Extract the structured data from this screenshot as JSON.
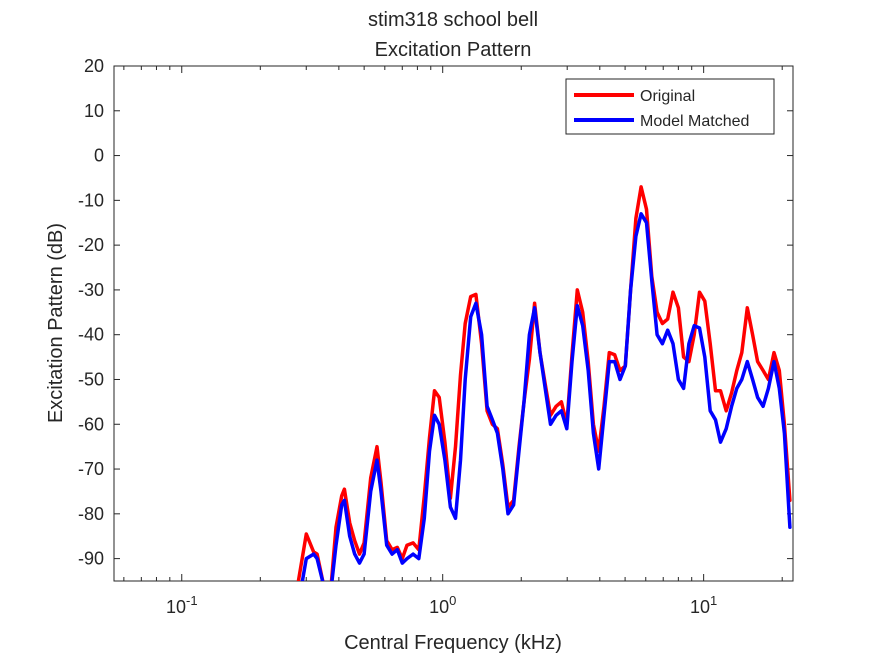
{
  "chart_data": {
    "type": "line",
    "title": "stim318 school bell",
    "subtitle": "Excitation Pattern",
    "xlabel": "Central Frequency (kHz)",
    "ylabel": "Excitation Pattern (dB)",
    "xscale": "log",
    "xlim": [
      0.055,
      22.0
    ],
    "ylim": [
      -95,
      20
    ],
    "yticks": [
      20,
      10,
      0,
      -10,
      -20,
      -30,
      -40,
      -50,
      -60,
      -70,
      -80,
      -90
    ],
    "xticks": [
      {
        "value": 0.1,
        "base": "10",
        "exp": "-1"
      },
      {
        "value": 1,
        "base": "10",
        "exp": "0"
      },
      {
        "value": 10,
        "base": "10",
        "exp": "1"
      }
    ],
    "grid": false,
    "legend_position": "top-right",
    "series": [
      {
        "name": "Original",
        "color": "#ff0000",
        "x": [
          0.28,
          0.3,
          0.32,
          0.33,
          0.35,
          0.37,
          0.39,
          0.41,
          0.42,
          0.44,
          0.46,
          0.48,
          0.5,
          0.53,
          0.56,
          0.58,
          0.61,
          0.64,
          0.67,
          0.7,
          0.73,
          0.77,
          0.81,
          0.85,
          0.89,
          0.93,
          0.97,
          1.02,
          1.07,
          1.12,
          1.17,
          1.22,
          1.28,
          1.34,
          1.41,
          1.48,
          1.55,
          1.62,
          1.7,
          1.78,
          1.87,
          1.96,
          2.05,
          2.15,
          2.25,
          2.36,
          2.47,
          2.59,
          2.72,
          2.85,
          2.99,
          3.13,
          3.28,
          3.44,
          3.61,
          3.78,
          3.96,
          4.15,
          4.35,
          4.56,
          4.78,
          5.01,
          5.25,
          5.5,
          5.76,
          6.04,
          6.33,
          6.63,
          6.95,
          7.28,
          7.63,
          8.0,
          8.38,
          8.78,
          9.2,
          9.64,
          10.1,
          10.6,
          11.1,
          11.6,
          12.2,
          12.8,
          13.4,
          14.0,
          14.7,
          15.4,
          16.1,
          16.9,
          17.7,
          18.6,
          19.5,
          20.4,
          21.4
        ],
        "y": [
          -95,
          -84.5,
          -88.5,
          -89,
          -96,
          -99,
          -83,
          -76,
          -74.5,
          -82,
          -86,
          -89,
          -86.5,
          -72,
          -65,
          -73,
          -86,
          -88,
          -87.5,
          -90,
          -87,
          -86.5,
          -88,
          -76,
          -63,
          -52.5,
          -54,
          -64,
          -76.5,
          -65,
          -49,
          -37.5,
          -31.5,
          -31,
          -42,
          -57,
          -60,
          -61,
          -69,
          -78.5,
          -77,
          -65,
          -55,
          -45.5,
          -33,
          -44,
          -51,
          -58,
          -56,
          -55,
          -60,
          -44.5,
          -30,
          -35,
          -46,
          -60,
          -66,
          -56,
          -44,
          -44.5,
          -48,
          -47,
          -30,
          -14,
          -7,
          -12,
          -27,
          -35,
          -37.5,
          -36.5,
          -30.5,
          -34,
          -45,
          -46,
          -40,
          -30.5,
          -32.5,
          -42,
          -52.5,
          -52.5,
          -57,
          -53,
          -48,
          -44,
          -34,
          -40,
          -46,
          -48,
          -50,
          -44,
          -48,
          -60,
          -77
        ]
      },
      {
        "name": "Model Matched",
        "color": "#0000ff",
        "x": [
          0.29,
          0.3,
          0.32,
          0.33,
          0.35,
          0.37,
          0.39,
          0.41,
          0.42,
          0.44,
          0.46,
          0.48,
          0.5,
          0.53,
          0.56,
          0.58,
          0.61,
          0.64,
          0.67,
          0.7,
          0.73,
          0.77,
          0.81,
          0.85,
          0.89,
          0.93,
          0.97,
          1.02,
          1.07,
          1.12,
          1.17,
          1.22,
          1.28,
          1.34,
          1.41,
          1.48,
          1.55,
          1.62,
          1.7,
          1.78,
          1.87,
          1.96,
          2.05,
          2.15,
          2.25,
          2.36,
          2.47,
          2.59,
          2.72,
          2.85,
          2.99,
          3.13,
          3.28,
          3.44,
          3.61,
          3.78,
          3.96,
          4.15,
          4.35,
          4.56,
          4.78,
          5.01,
          5.25,
          5.5,
          5.76,
          6.04,
          6.33,
          6.63,
          6.95,
          7.28,
          7.63,
          8.0,
          8.38,
          8.78,
          9.2,
          9.64,
          10.1,
          10.6,
          11.1,
          11.6,
          12.2,
          12.8,
          13.4,
          14.0,
          14.7,
          15.4,
          16.1,
          16.9,
          17.7,
          18.6,
          19.5,
          20.4,
          21.4
        ],
        "y": [
          -95,
          -90,
          -89,
          -90,
          -96,
          -99,
          -87,
          -78,
          -77,
          -85,
          -89,
          -91,
          -89,
          -75,
          -68,
          -75,
          -87,
          -89,
          -88,
          -91,
          -90,
          -89,
          -90,
          -81,
          -66,
          -58,
          -60,
          -68,
          -78.5,
          -81,
          -68,
          -50,
          -36,
          -33,
          -40,
          -56,
          -59,
          -62,
          -70,
          -80,
          -78,
          -66,
          -55,
          -40,
          -34,
          -44,
          -52,
          -60,
          -58,
          -57,
          -61,
          -46,
          -33.5,
          -38,
          -48,
          -62,
          -70,
          -58,
          -46,
          -46,
          -50,
          -47,
          -30,
          -18,
          -13,
          -15,
          -28,
          -40,
          -42,
          -39,
          -42,
          -50,
          -52,
          -42,
          -38,
          -38.5,
          -45,
          -57,
          -59,
          -64,
          -61,
          -56,
          -52,
          -50,
          -46,
          -50,
          -54,
          -56,
          -52,
          -46,
          -52,
          -62,
          -83
        ]
      }
    ]
  }
}
